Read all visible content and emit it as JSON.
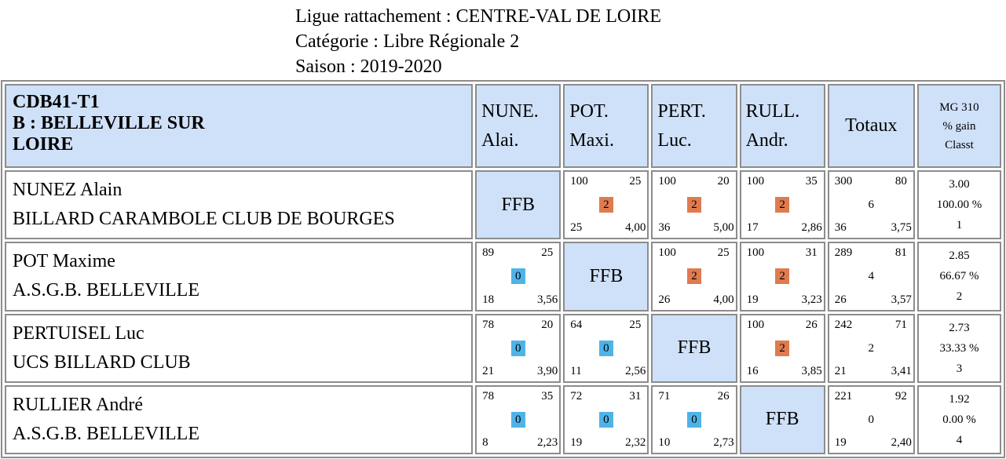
{
  "header": {
    "ligue": "Ligue rattachement : CENTRE-VAL DE LOIRE",
    "categorie": "Catégorie : Libre Régionale 2",
    "saison": "Saison : 2019-2020"
  },
  "team": {
    "line1": "CDB41-T1",
    "line2": "B : BELLEVILLE SUR",
    "line3": "LOIRE"
  },
  "columns": [
    {
      "line1": "NUNE.",
      "line2": "Alai."
    },
    {
      "line1": "POT.",
      "line2": "Maxi."
    },
    {
      "line1": "PERT.",
      "line2": "Luc."
    },
    {
      "line1": "RULL.",
      "line2": "Andr."
    }
  ],
  "totaux_label": "Totaux",
  "mg_header": {
    "line1": "MG 310",
    "line2": "% gain",
    "line3": "Classt"
  },
  "ffb_label": "FFB",
  "colors": {
    "win": "#e07b4f",
    "loss": "#4fb3e8",
    "header_bg": "#cfe1f9"
  },
  "rows": [
    {
      "name": "NUNEZ Alain",
      "club": "BILLARD CARAMBOLE CLUB DE BOURGES",
      "cells": [
        null,
        {
          "tl": "100",
          "tr": "25",
          "mid": "2",
          "bl": "25",
          "br": "4,00"
        },
        {
          "tl": "100",
          "tr": "20",
          "mid": "2",
          "bl": "36",
          "br": "5,00"
        },
        {
          "tl": "100",
          "tr": "35",
          "mid": "2",
          "bl": "17",
          "br": "2,86"
        }
      ],
      "total": {
        "tl": "300",
        "tr": "80",
        "mid": "6",
        "bl": "36",
        "br": "3,75"
      },
      "mg": {
        "moyenne": "3.00",
        "pct": "100.00 %",
        "classt": "1"
      }
    },
    {
      "name": "POT Maxime",
      "club": "A.S.G.B. BELLEVILLE",
      "cells": [
        {
          "tl": "89",
          "tr": "25",
          "mid": "0",
          "bl": "18",
          "br": "3,56"
        },
        null,
        {
          "tl": "100",
          "tr": "25",
          "mid": "2",
          "bl": "26",
          "br": "4,00"
        },
        {
          "tl": "100",
          "tr": "31",
          "mid": "2",
          "bl": "19",
          "br": "3,23"
        }
      ],
      "total": {
        "tl": "289",
        "tr": "81",
        "mid": "4",
        "bl": "26",
        "br": "3,57"
      },
      "mg": {
        "moyenne": "2.85",
        "pct": "66.67 %",
        "classt": "2"
      }
    },
    {
      "name": "PERTUISEL Luc",
      "club": "UCS BILLARD CLUB",
      "cells": [
        {
          "tl": "78",
          "tr": "20",
          "mid": "0",
          "bl": "21",
          "br": "3,90"
        },
        {
          "tl": "64",
          "tr": "25",
          "mid": "0",
          "bl": "11",
          "br": "2,56"
        },
        null,
        {
          "tl": "100",
          "tr": "26",
          "mid": "2",
          "bl": "16",
          "br": "3,85"
        }
      ],
      "total": {
        "tl": "242",
        "tr": "71",
        "mid": "2",
        "bl": "21",
        "br": "3,41"
      },
      "mg": {
        "moyenne": "2.73",
        "pct": "33.33 %",
        "classt": "3"
      }
    },
    {
      "name": "RULLIER André",
      "club": "A.S.G.B. BELLEVILLE",
      "cells": [
        {
          "tl": "78",
          "tr": "35",
          "mid": "0",
          "bl": "8",
          "br": "2,23"
        },
        {
          "tl": "72",
          "tr": "31",
          "mid": "0",
          "bl": "19",
          "br": "2,32"
        },
        {
          "tl": "71",
          "tr": "26",
          "mid": "0",
          "bl": "10",
          "br": "2,73"
        },
        null
      ],
      "total": {
        "tl": "221",
        "tr": "92",
        "mid": "0",
        "bl": "19",
        "br": "2,40"
      },
      "mg": {
        "moyenne": "1.92",
        "pct": "0.00 %",
        "classt": "4"
      }
    }
  ]
}
